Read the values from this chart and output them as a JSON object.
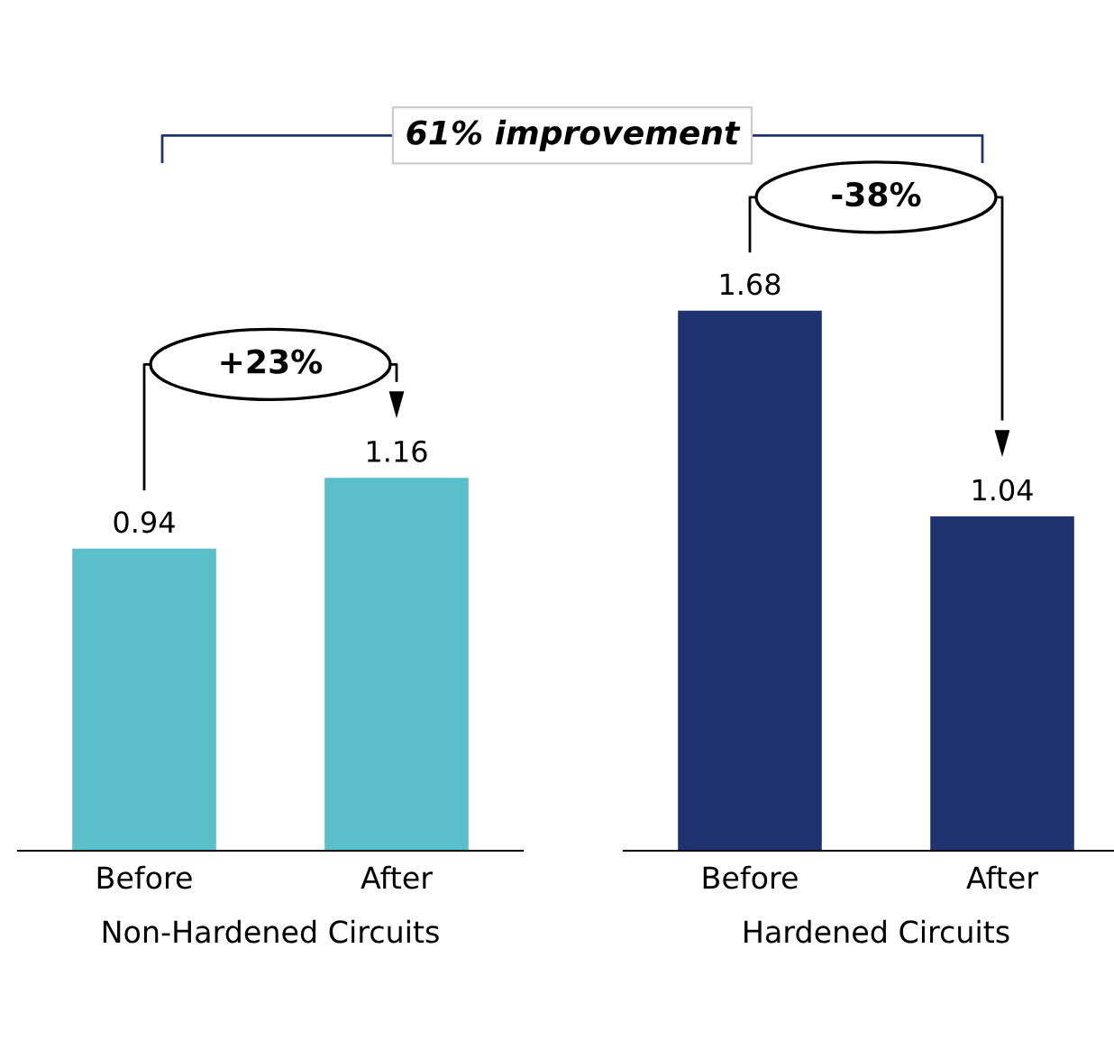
{
  "chart_data": [
    {
      "type": "bar",
      "categories": [
        "Before",
        "After"
      ],
      "values": [
        0.94,
        1.16
      ],
      "color": "#5bbfc9",
      "xlabel": "Non-Hardened Circuits",
      "data_labels": true,
      "tick_labels": "x",
      "grid": false,
      "legend": false,
      "annotations": [
        "+23%",
        "61% improvement"
      ]
    },
    {
      "type": "bar",
      "categories": [
        "Before",
        "After"
      ],
      "values": [
        1.68,
        1.04
      ],
      "color": "#1f3370",
      "xlabel": "Hardened Circuits",
      "data_labels": true,
      "tick_labels": "x",
      "grid": false,
      "legend": false,
      "annotations": [
        "-38%"
      ]
    }
  ]
}
